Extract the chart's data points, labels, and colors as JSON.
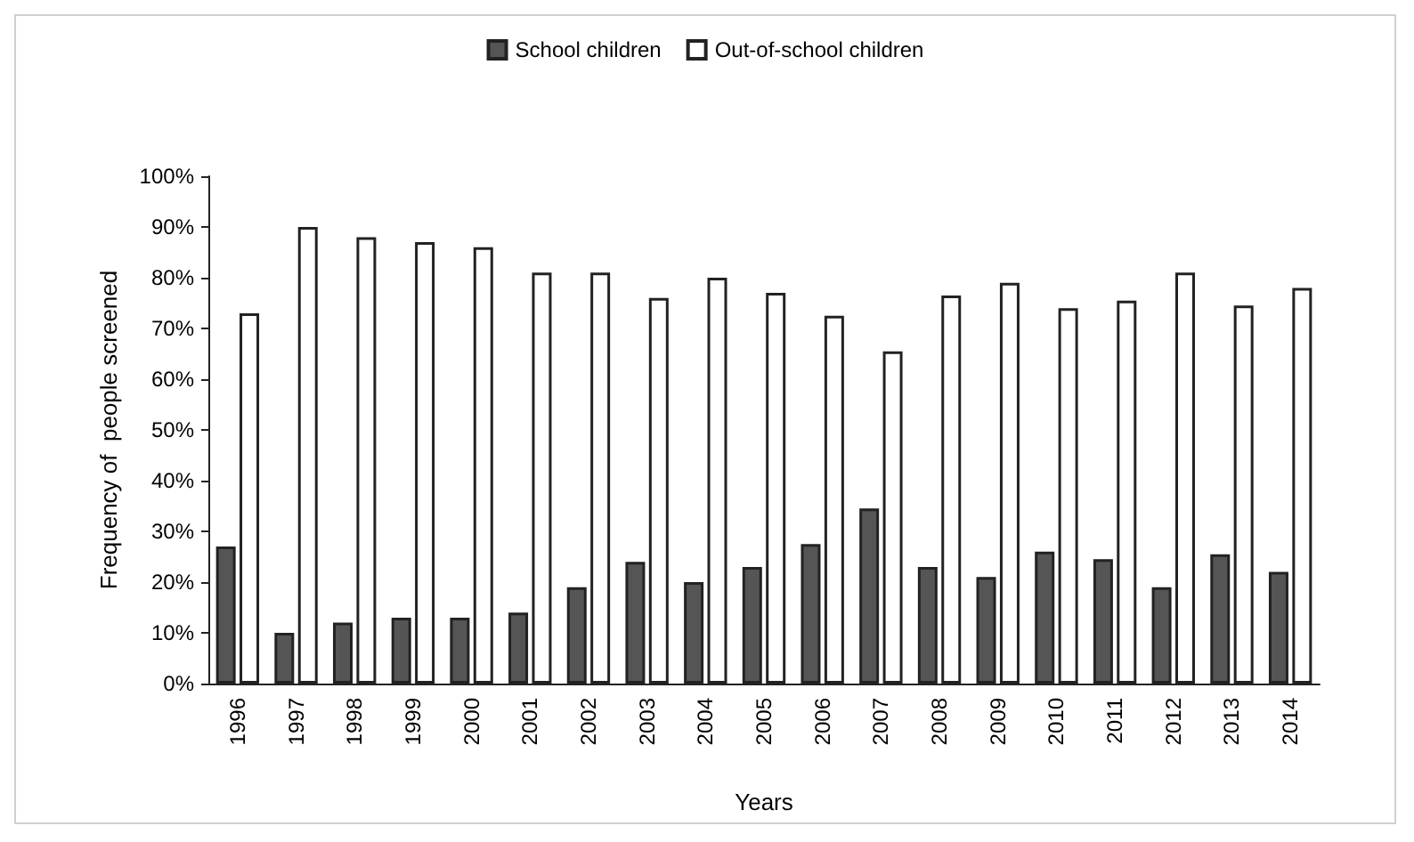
{
  "chart_data": {
    "type": "bar",
    "xlabel": "Years",
    "ylabel": "Frequency of  people screened",
    "categories": [
      "1996",
      "1997",
      "1998",
      "1999",
      "2000",
      "2001",
      "2002",
      "2003",
      "2004",
      "2005",
      "2006",
      "2007",
      "2008",
      "2009",
      "2010",
      "2011",
      "2012",
      "2013",
      "2014"
    ],
    "series": [
      {
        "name": "School children",
        "color": "#555555",
        "values": [
          27,
          10,
          12,
          13,
          13,
          14,
          19,
          24,
          20,
          23,
          27.5,
          34.5,
          23,
          21,
          26,
          24.5,
          19,
          25.5,
          22
        ]
      },
      {
        "name": "Out-of-school children",
        "color": "#ffffff",
        "values": [
          73,
          90,
          88,
          87,
          86,
          81,
          81,
          76,
          80,
          77,
          72.5,
          65.5,
          76.5,
          79,
          74,
          75.5,
          81,
          74.5,
          78
        ]
      }
    ],
    "ylim": [
      0,
      100
    ],
    "yticks": [
      {
        "value": 0,
        "label": "0%"
      },
      {
        "value": 10,
        "label": "10%"
      },
      {
        "value": 20,
        "label": "20%"
      },
      {
        "value": 30,
        "label": "30%"
      },
      {
        "value": 40,
        "label": "40%"
      },
      {
        "value": 50,
        "label": "50%"
      },
      {
        "value": 60,
        "label": "60%"
      },
      {
        "value": 70,
        "label": "70%"
      },
      {
        "value": 80,
        "label": "80%"
      },
      {
        "value": 90,
        "label": "90%"
      },
      {
        "value": 100,
        "label": "100%"
      }
    ],
    "grid": false,
    "legend": "top"
  }
}
